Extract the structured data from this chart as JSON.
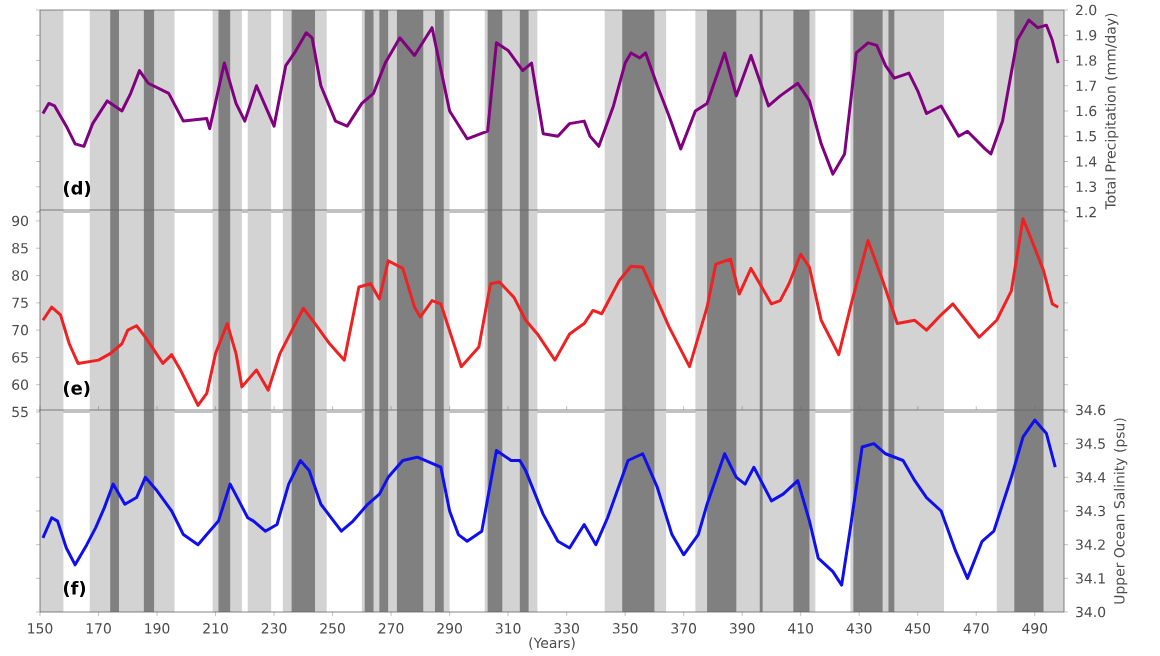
{
  "chart_data": [
    {
      "type": "line",
      "annotations": [
        "(d)"
      ],
      "y2label": "Total Precipitation (mm/day)",
      "tick_labels": "y",
      "xlim": [
        150,
        500
      ],
      "y2lim": [
        1.2,
        2.0
      ],
      "y2ticks": [
        1.2,
        1.3,
        1.4,
        1.5,
        1.6,
        1.7,
        1.8,
        1.9,
        {
          "value": 2,
          "label": "2.0"
        }
      ],
      "x": [
        151,
        153,
        155,
        159,
        162,
        165,
        168,
        173,
        178,
        181,
        184,
        187,
        194,
        199,
        207,
        208,
        213,
        217,
        220,
        224,
        227,
        230,
        234,
        237,
        241,
        243,
        246,
        251,
        255,
        260,
        264,
        268,
        273,
        278,
        284,
        290,
        296,
        303,
        306,
        310,
        315,
        318,
        322,
        327,
        331,
        336,
        338,
        341,
        346,
        350,
        352,
        355,
        357,
        361,
        365,
        369,
        374,
        378,
        384,
        388,
        393,
        399,
        403,
        409,
        413,
        417,
        421,
        425,
        429,
        433,
        436,
        439,
        442,
        447,
        450,
        453,
        458,
        464,
        467,
        473,
        475,
        479,
        484,
        488,
        491,
        494,
        496,
        498
      ],
      "series": [
        {
          "color": "#800080",
          "axis": "y2",
          "values": [
            1.59,
            1.63,
            1.62,
            1.54,
            1.47,
            1.46,
            1.55,
            1.64,
            1.6,
            1.67,
            1.76,
            1.71,
            1.67,
            1.56,
            1.57,
            1.53,
            1.79,
            1.63,
            1.56,
            1.7,
            1.62,
            1.54,
            1.78,
            1.83,
            1.91,
            1.89,
            1.7,
            1.56,
            1.54,
            1.63,
            1.67,
            1.79,
            1.89,
            1.82,
            1.93,
            1.6,
            1.49,
            1.52,
            1.87,
            1.84,
            1.76,
            1.79,
            1.51,
            1.5,
            1.55,
            1.56,
            1.5,
            1.46,
            1.62,
            1.79,
            1.83,
            1.81,
            1.83,
            1.7,
            1.58,
            1.45,
            1.6,
            1.63,
            1.83,
            1.66,
            1.82,
            1.62,
            1.66,
            1.71,
            1.64,
            1.47,
            1.35,
            1.43,
            1.83,
            1.87,
            1.86,
            1.78,
            1.73,
            1.75,
            1.68,
            1.59,
            1.62,
            1.5,
            1.52,
            1.45,
            1.43,
            1.56,
            1.88,
            1.96,
            1.93,
            1.94,
            1.88,
            1.79
          ]
        }
      ],
      "bands": [
        {
          "axis": "x",
          "from": 150,
          "to": 158,
          "color": "#d3d3d3"
        },
        {
          "axis": "x",
          "from": 167,
          "to": 196,
          "color": "#d3d3d3"
        },
        {
          "axis": "x",
          "from": 209,
          "to": 219,
          "color": "#d3d3d3"
        },
        {
          "axis": "x",
          "from": 221,
          "to": 229,
          "color": "#d3d3d3"
        },
        {
          "axis": "x",
          "from": 233,
          "to": 248,
          "color": "#d3d3d3"
        },
        {
          "axis": "x",
          "from": 260,
          "to": 290,
          "color": "#d3d3d3"
        },
        {
          "axis": "x",
          "from": 302,
          "to": 320,
          "color": "#d3d3d3"
        },
        {
          "axis": "x",
          "from": 343,
          "to": 364,
          "color": "#d3d3d3"
        },
        {
          "axis": "x",
          "from": 374,
          "to": 415,
          "color": "#d3d3d3"
        },
        {
          "axis": "x",
          "from": 427,
          "to": 459,
          "color": "#d3d3d3"
        },
        {
          "axis": "x",
          "from": 477,
          "to": 500,
          "color": "#d3d3d3"
        },
        {
          "axis": "x",
          "from": 174,
          "to": 177,
          "color": "#808080"
        },
        {
          "axis": "x",
          "from": 185.5,
          "to": 189,
          "color": "#808080"
        },
        {
          "axis": "x",
          "from": 211,
          "to": 215,
          "color": "#808080"
        },
        {
          "axis": "x",
          "from": 236,
          "to": 244,
          "color": "#808080"
        },
        {
          "axis": "x",
          "from": 261,
          "to": 264,
          "color": "#808080"
        },
        {
          "axis": "x",
          "from": 266,
          "to": 269,
          "color": "#808080"
        },
        {
          "axis": "x",
          "from": 272,
          "to": 281,
          "color": "#808080"
        },
        {
          "axis": "x",
          "from": 285,
          "to": 288,
          "color": "#808080"
        },
        {
          "axis": "x",
          "from": 303,
          "to": 308,
          "color": "#808080"
        },
        {
          "axis": "x",
          "from": 314,
          "to": 317,
          "color": "#808080"
        },
        {
          "axis": "x",
          "from": 349,
          "to": 360,
          "color": "#808080"
        },
        {
          "axis": "x",
          "from": 378,
          "to": 388,
          "color": "#808080"
        },
        {
          "axis": "x",
          "from": 396,
          "to": 397,
          "color": "#808080"
        },
        {
          "axis": "x",
          "from": 407.5,
          "to": 413,
          "color": "#808080"
        },
        {
          "axis": "x",
          "from": 428,
          "to": 438,
          "color": "#808080"
        },
        {
          "axis": "x",
          "from": 440,
          "to": 442,
          "color": "#808080"
        },
        {
          "axis": "x",
          "from": 483,
          "to": 493,
          "color": "#808080"
        }
      ]
    },
    {
      "type": "line",
      "annotations": [
        "(e)"
      ],
      "tick_labels": "y",
      "xlim": [
        150,
        500
      ],
      "ylim": [
        55,
        92
      ],
      "yticks": [
        55,
        60,
        65,
        70,
        75,
        80,
        85,
        90
      ],
      "x": [
        151,
        154,
        157,
        160,
        163,
        170,
        174,
        178,
        180,
        183,
        186,
        192,
        195,
        198,
        204,
        207,
        210,
        214,
        217,
        219,
        224,
        228,
        232,
        240,
        244,
        249,
        254,
        259,
        263,
        266,
        269,
        274,
        278,
        280,
        284,
        287,
        294,
        300,
        304,
        307,
        312,
        316,
        320,
        326,
        331,
        336,
        339,
        342,
        348,
        352,
        356,
        358,
        365,
        372,
        378,
        381,
        386,
        389,
        393,
        400,
        403,
        406,
        410,
        413,
        417,
        423,
        427,
        433,
        438,
        443,
        449,
        453,
        458,
        462,
        471,
        477,
        482,
        486,
        489,
        493,
        496,
        498
      ],
      "series": [
        {
          "color": "#ee2222",
          "values": [
            71.8,
            74.2,
            72.8,
            67.5,
            63.9,
            64.5,
            65.7,
            67.5,
            70.0,
            70.8,
            68.7,
            63.9,
            65.5,
            62.7,
            56.2,
            58.4,
            65.7,
            71.2,
            65.7,
            59.6,
            62.7,
            59.0,
            65.7,
            74.0,
            71.2,
            67.5,
            64.5,
            77.9,
            78.5,
            75.7,
            82.7,
            81.3,
            74.2,
            72.4,
            75.4,
            74.8,
            63.3,
            66.9,
            78.5,
            78.8,
            76.0,
            71.8,
            69.3,
            64.5,
            69.3,
            71.2,
            73.6,
            73.0,
            79.1,
            81.7,
            81.5,
            79.1,
            70.6,
            63.3,
            74.2,
            82.1,
            83.0,
            76.6,
            81.3,
            74.8,
            75.4,
            78.5,
            83.9,
            81.5,
            71.8,
            65.5,
            74.2,
            86.4,
            79.1,
            71.2,
            71.8,
            70.0,
            72.8,
            74.8,
            68.7,
            71.8,
            77.2,
            90.4,
            86.4,
            80.9,
            74.8,
            74.2
          ]
        }
      ],
      "bands": [
        {
          "axis": "x",
          "from": 150,
          "to": 158,
          "color": "#d3d3d3"
        },
        {
          "axis": "x",
          "from": 167,
          "to": 196,
          "color": "#d3d3d3"
        },
        {
          "axis": "x",
          "from": 209,
          "to": 219,
          "color": "#d3d3d3"
        },
        {
          "axis": "x",
          "from": 221,
          "to": 229,
          "color": "#d3d3d3"
        },
        {
          "axis": "x",
          "from": 233,
          "to": 248,
          "color": "#d3d3d3"
        },
        {
          "axis": "x",
          "from": 260,
          "to": 290,
          "color": "#d3d3d3"
        },
        {
          "axis": "x",
          "from": 302,
          "to": 320,
          "color": "#d3d3d3"
        },
        {
          "axis": "x",
          "from": 343,
          "to": 364,
          "color": "#d3d3d3"
        },
        {
          "axis": "x",
          "from": 374,
          "to": 415,
          "color": "#d3d3d3"
        },
        {
          "axis": "x",
          "from": 427,
          "to": 459,
          "color": "#d3d3d3"
        },
        {
          "axis": "x",
          "from": 477,
          "to": 500,
          "color": "#d3d3d3"
        },
        {
          "axis": "x",
          "from": 174,
          "to": 177,
          "color": "#808080"
        },
        {
          "axis": "x",
          "from": 185.5,
          "to": 189,
          "color": "#808080"
        },
        {
          "axis": "x",
          "from": 211,
          "to": 215,
          "color": "#808080"
        },
        {
          "axis": "x",
          "from": 236,
          "to": 244,
          "color": "#808080"
        },
        {
          "axis": "x",
          "from": 261,
          "to": 264,
          "color": "#808080"
        },
        {
          "axis": "x",
          "from": 266,
          "to": 269,
          "color": "#808080"
        },
        {
          "axis": "x",
          "from": 272,
          "to": 281,
          "color": "#808080"
        },
        {
          "axis": "x",
          "from": 285,
          "to": 288,
          "color": "#808080"
        },
        {
          "axis": "x",
          "from": 303,
          "to": 308,
          "color": "#808080"
        },
        {
          "axis": "x",
          "from": 314,
          "to": 317,
          "color": "#808080"
        },
        {
          "axis": "x",
          "from": 349,
          "to": 360,
          "color": "#808080"
        },
        {
          "axis": "x",
          "from": 378,
          "to": 388,
          "color": "#808080"
        },
        {
          "axis": "x",
          "from": 396,
          "to": 397,
          "color": "#808080"
        },
        {
          "axis": "x",
          "from": 407.5,
          "to": 413,
          "color": "#808080"
        },
        {
          "axis": "x",
          "from": 428,
          "to": 438,
          "color": "#808080"
        },
        {
          "axis": "x",
          "from": 440,
          "to": 442,
          "color": "#808080"
        },
        {
          "axis": "x",
          "from": 483,
          "to": 493,
          "color": "#808080"
        }
      ]
    },
    {
      "type": "line",
      "annotations": [
        "(f)"
      ],
      "xlabel": "(Years)",
      "y2label": "Upper Ocean Salinity (psu)",
      "xlim": [
        150,
        500
      ],
      "xticks": [
        150,
        170,
        190,
        210,
        230,
        250,
        270,
        290,
        310,
        330,
        350,
        370,
        390,
        410,
        430,
        450,
        470,
        490
      ],
      "y2lim": [
        34.0,
        34.6
      ],
      "y2ticks": [
        {
          "value": 34,
          "label": "34.0"
        },
        34.1,
        34.2,
        34.3,
        34.4,
        34.5,
        34.6
      ],
      "x": [
        151,
        154,
        156,
        159,
        162,
        166,
        169,
        172,
        175,
        179,
        183,
        186,
        190,
        195,
        199,
        204,
        207,
        211,
        215,
        218,
        221,
        223,
        227,
        231,
        235,
        239,
        242,
        246,
        253,
        257,
        262,
        266,
        269,
        274,
        279,
        287,
        290,
        293,
        296,
        301,
        306,
        311,
        314,
        316,
        322,
        327,
        331,
        336,
        340,
        344,
        351,
        356,
        361,
        366,
        370,
        375,
        378,
        384,
        388,
        391,
        394,
        400,
        404,
        409,
        413,
        416,
        421,
        424,
        427,
        431,
        435,
        439,
        445,
        449,
        453,
        458,
        463,
        467,
        472,
        476,
        482,
        486,
        490,
        494,
        497
      ],
      "series": [
        {
          "color": "#1010ee",
          "axis": "y2",
          "values": [
            34.22,
            34.28,
            34.27,
            34.19,
            34.14,
            34.2,
            34.25,
            34.31,
            34.38,
            34.32,
            34.34,
            34.4,
            34.36,
            34.3,
            34.23,
            34.2,
            34.23,
            34.27,
            34.38,
            34.33,
            34.28,
            34.27,
            34.24,
            34.26,
            34.38,
            34.45,
            34.42,
            34.32,
            34.24,
            34.27,
            34.32,
            34.35,
            34.4,
            34.45,
            34.46,
            34.43,
            34.3,
            34.23,
            34.21,
            34.24,
            34.48,
            34.45,
            34.45,
            34.42,
            34.29,
            34.21,
            34.19,
            34.26,
            34.2,
            34.28,
            34.45,
            34.47,
            34.37,
            34.23,
            34.17,
            34.23,
            34.32,
            34.47,
            34.4,
            34.38,
            34.43,
            34.33,
            34.35,
            34.39,
            34.27,
            34.16,
            34.12,
            34.08,
            34.25,
            34.49,
            34.5,
            34.47,
            34.45,
            34.39,
            34.34,
            34.3,
            34.18,
            34.1,
            34.21,
            34.24,
            34.4,
            34.52,
            34.57,
            34.53,
            34.43
          ]
        }
      ],
      "bands": [
        {
          "axis": "x",
          "from": 150,
          "to": 158,
          "color": "#d3d3d3"
        },
        {
          "axis": "x",
          "from": 167,
          "to": 196,
          "color": "#d3d3d3"
        },
        {
          "axis": "x",
          "from": 209,
          "to": 219,
          "color": "#d3d3d3"
        },
        {
          "axis": "x",
          "from": 221,
          "to": 229,
          "color": "#d3d3d3"
        },
        {
          "axis": "x",
          "from": 233,
          "to": 248,
          "color": "#d3d3d3"
        },
        {
          "axis": "x",
          "from": 260,
          "to": 290,
          "color": "#d3d3d3"
        },
        {
          "axis": "x",
          "from": 302,
          "to": 320,
          "color": "#d3d3d3"
        },
        {
          "axis": "x",
          "from": 343,
          "to": 364,
          "color": "#d3d3d3"
        },
        {
          "axis": "x",
          "from": 374,
          "to": 415,
          "color": "#d3d3d3"
        },
        {
          "axis": "x",
          "from": 427,
          "to": 459,
          "color": "#d3d3d3"
        },
        {
          "axis": "x",
          "from": 477,
          "to": 500,
          "color": "#d3d3d3"
        },
        {
          "axis": "x",
          "from": 174,
          "to": 177,
          "color": "#808080"
        },
        {
          "axis": "x",
          "from": 185.5,
          "to": 189,
          "color": "#808080"
        },
        {
          "axis": "x",
          "from": 211,
          "to": 215,
          "color": "#808080"
        },
        {
          "axis": "x",
          "from": 236,
          "to": 244,
          "color": "#808080"
        },
        {
          "axis": "x",
          "from": 261,
          "to": 264,
          "color": "#808080"
        },
        {
          "axis": "x",
          "from": 266,
          "to": 269,
          "color": "#808080"
        },
        {
          "axis": "x",
          "from": 272,
          "to": 281,
          "color": "#808080"
        },
        {
          "axis": "x",
          "from": 285,
          "to": 288,
          "color": "#808080"
        },
        {
          "axis": "x",
          "from": 303,
          "to": 308,
          "color": "#808080"
        },
        {
          "axis": "x",
          "from": 314,
          "to": 317,
          "color": "#808080"
        },
        {
          "axis": "x",
          "from": 349,
          "to": 360,
          "color": "#808080"
        },
        {
          "axis": "x",
          "from": 378,
          "to": 388,
          "color": "#808080"
        },
        {
          "axis": "x",
          "from": 396,
          "to": 397,
          "color": "#808080"
        },
        {
          "axis": "x",
          "from": 407.5,
          "to": 413,
          "color": "#808080"
        },
        {
          "axis": "x",
          "from": 428,
          "to": 438,
          "color": "#808080"
        },
        {
          "axis": "x",
          "from": 440,
          "to": 442,
          "color": "#808080"
        },
        {
          "axis": "x",
          "from": 483,
          "to": 493,
          "color": "#808080"
        }
      ]
    }
  ]
}
